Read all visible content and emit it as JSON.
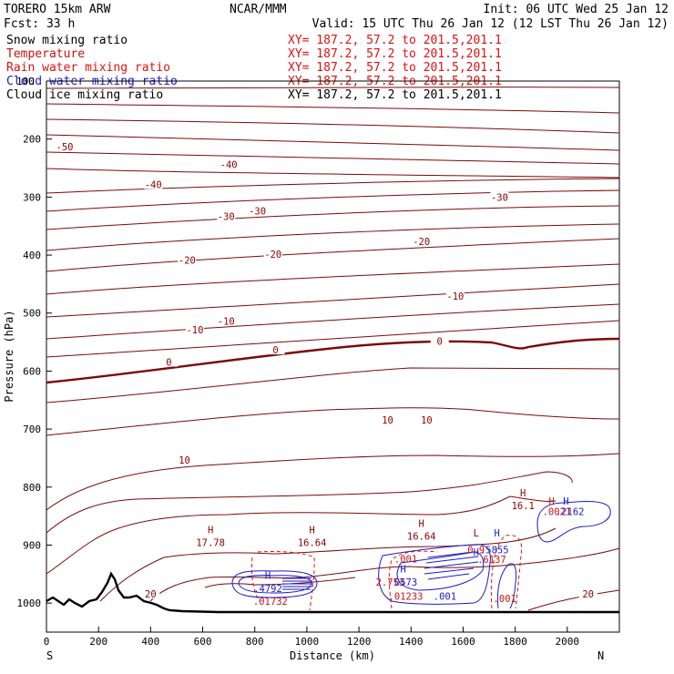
{
  "header": {
    "model": "TORERO  15km ARW",
    "center": "NCAR/MMM",
    "init": "Init: 06 UTC Wed 25 Jan 12",
    "fcst": "Fcst:   33 h",
    "valid": "Valid: 15 UTC Thu 26 Jan 12 (12 LST Thu 26 Jan 12)"
  },
  "fields": [
    {
      "name": "Snow mixing ratio",
      "xy": "XY= 187.2, 57.2 to 201.5,201.1",
      "color": "#000000"
    },
    {
      "name": "Temperature",
      "xy": "XY= 187.2, 57.2 to 201.5,201.1",
      "color": "#cc1111"
    },
    {
      "name": "Rain water mixing ratio",
      "xy": "XY= 187.2, 57.2 to 201.5,201.1",
      "color": "#dd1111"
    },
    {
      "name": "Cloud water mixing ratio",
      "xy": "XY= 187.2, 57.2 to 201.5,201.1",
      "color": "#1a1acc"
    },
    {
      "name": "Cloud ice mixing ratio",
      "xy": "XY= 187.2, 57.2 to 201.5,201.1",
      "color": "#000000"
    }
  ],
  "overlap_text": "100",
  "chart_data": {
    "type": "cross-section contour",
    "xlabel": "Distance (km)",
    "ylabel": "Pressure (hPa)",
    "xlim": [
      0,
      2200
    ],
    "ylim": [
      1050,
      100
    ],
    "x_ticks": [
      0,
      200,
      400,
      600,
      800,
      1000,
      1200,
      1400,
      1600,
      1800,
      2000
    ],
    "y_ticks": [
      200,
      300,
      400,
      500,
      600,
      700,
      800,
      900,
      1000
    ],
    "end_left": "S",
    "end_right": "N",
    "temperature_labels": [
      {
        "text": "-50",
        "x": 70,
        "p": 215
      },
      {
        "text": "-40",
        "x": 410,
        "p": 280
      },
      {
        "text": "-40",
        "x": 700,
        "p": 245
      },
      {
        "text": "-30",
        "x": 690,
        "p": 335
      },
      {
        "text": "-30",
        "x": 810,
        "p": 325
      },
      {
        "text": "-30",
        "x": 1740,
        "p": 302
      },
      {
        "text": "-20",
        "x": 540,
        "p": 410
      },
      {
        "text": "-20",
        "x": 870,
        "p": 400
      },
      {
        "text": "-20",
        "x": 1440,
        "p": 378
      },
      {
        "text": "-10",
        "x": 570,
        "p": 530
      },
      {
        "text": "-10",
        "x": 690,
        "p": 515
      },
      {
        "text": "-10",
        "x": 1570,
        "p": 472
      },
      {
        "text": "0",
        "x": 470,
        "p": 586
      },
      {
        "text": "0",
        "x": 880,
        "p": 565
      },
      {
        "text": "0",
        "x": 1510,
        "p": 550
      },
      {
        "text": "10",
        "x": 1310,
        "p": 686
      },
      {
        "text": "10",
        "x": 1460,
        "p": 686
      },
      {
        "text": "10",
        "x": 530,
        "p": 755
      },
      {
        "text": "20",
        "x": 400,
        "p": 986
      },
      {
        "text": "20",
        "x": 2080,
        "p": 986
      }
    ],
    "max_min_markers": [
      {
        "mark": "H",
        "value": "17.78",
        "x": 630,
        "p": 880
      },
      {
        "mark": "H",
        "value": "16.64",
        "x": 1020,
        "p": 880
      },
      {
        "mark": "H",
        "value": "16.64",
        "x": 1440,
        "p": 869
      },
      {
        "mark": "H",
        "value": "16.1",
        "x": 1830,
        "p": 816
      },
      {
        "mark": "L",
        "value": "",
        "x": 1650,
        "p": 885
      }
    ],
    "moisture_labels": [
      {
        "text": "H",
        "x": 850,
        "p": 958,
        "color": "#1a1acc"
      },
      {
        "text": ".4792",
        "x": 850,
        "p": 981,
        "color": "#1a1acc"
      },
      {
        "text": ".01732",
        "x": 860,
        "p": 1003,
        "color": "#cc1111"
      },
      {
        "text": ".001",
        "x": 1380,
        "p": 930,
        "color": "#cc1111"
      },
      {
        "text": "H",
        "x": 1370,
        "p": 947,
        "color": "#1a1acc"
      },
      {
        "text": "2.753",
        "x": 1320,
        "p": 970,
        "color": "#cc1111"
      },
      {
        "text": "0573",
        "x": 1380,
        "p": 970,
        "color": "#1a1acc"
      },
      {
        "text": ".01233",
        "x": 1380,
        "p": 994,
        "color": "#cc1111"
      },
      {
        "text": ".001",
        "x": 1530,
        "p": 994,
        "color": "#1a1acc"
      },
      {
        "text": "H",
        "x": 1650,
        "p": 918,
        "color": "#1a1acc"
      },
      {
        "text": ".5855",
        "x": 1720,
        "p": 914,
        "color": "#1a1acc"
      },
      {
        "text": "0.9",
        "x": 1650,
        "p": 914,
        "color": "#cc1111"
      },
      {
        "text": ".6137",
        "x": 1710,
        "p": 931,
        "color": "#cc1111"
      },
      {
        "text": "H",
        "x": 1730,
        "p": 885,
        "color": "#1a1acc"
      },
      {
        "text": ".001",
        "x": 1760,
        "p": 998,
        "color": "#cc1111"
      },
      {
        "text": "H",
        "x": 1940,
        "p": 830,
        "color": "#cc1111"
      },
      {
        "text": ".0021",
        "x": 1960,
        "p": 848,
        "color": "#cc1111"
      },
      {
        "text": "H",
        "x": 1995,
        "p": 830,
        "color": "#1a1acc"
      },
      {
        "text": ".2162",
        "x": 2010,
        "p": 848,
        "color": "#1a1acc"
      }
    ]
  },
  "colors": {
    "temperature": "#7a0a0a",
    "temperature_label": "#8b0000",
    "rain": "#dd1111",
    "cloud": "#1a1acc",
    "terrain": "#000000",
    "axes": "#000000"
  }
}
